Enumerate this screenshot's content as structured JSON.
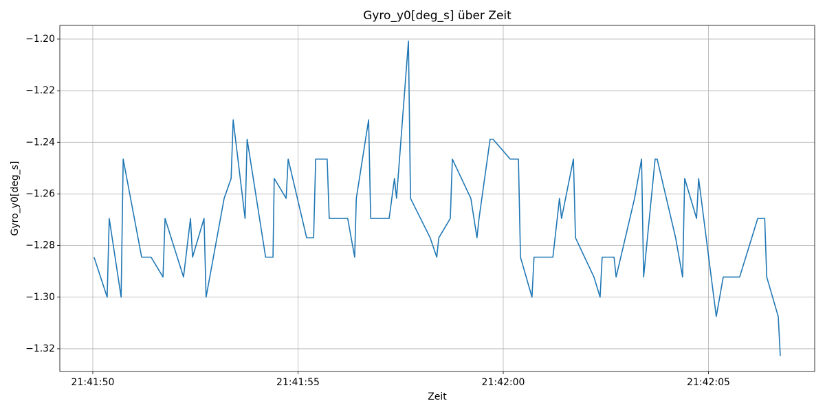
{
  "chart_data": {
    "type": "line",
    "title": "Gyro_y0[deg_s] über Zeit",
    "xlabel": "Zeit",
    "ylabel": "Gyro_y0[deg_s]",
    "grid": true,
    "x": [
      78110.03,
      78110.35,
      78110.4,
      78110.69,
      78110.74,
      78111.19,
      78111.42,
      78111.71,
      78111.76,
      78112.21,
      78112.38,
      78112.43,
      78112.71,
      78112.76,
      78113.2,
      78113.37,
      78113.42,
      78113.71,
      78113.76,
      78114.21,
      78114.39,
      78114.42,
      78114.71,
      78114.76,
      78115.21,
      78115.38,
      78115.43,
      78115.71,
      78115.76,
      78116.21,
      78116.38,
      78116.42,
      78116.72,
      78116.77,
      78117.22,
      78117.35,
      78117.4,
      78117.69,
      78117.74,
      78118.22,
      78118.38,
      78118.43,
      78118.71,
      78118.76,
      78119.21,
      78119.36,
      78119.41,
      78119.68,
      78119.75,
      78120.17,
      78120.37,
      78120.42,
      78120.7,
      78120.75,
      78121.21,
      78121.37,
      78121.42,
      78121.71,
      78121.76,
      78122.21,
      78122.36,
      78122.41,
      78122.7,
      78122.75,
      78123.2,
      78123.37,
      78123.42,
      78123.7,
      78123.75,
      78124.2,
      78124.37,
      78124.42,
      78124.71,
      78124.76,
      78125.19,
      78125.36,
      78125.76,
      78126.2,
      78126.37,
      78126.42,
      78126.7,
      78126.75
    ],
    "series": [
      {
        "name": "Gyro_y0[deg_s]",
        "color": "#1f77b4",
        "values": [
          -1.2845,
          -1.3,
          -1.2695,
          -1.3,
          -1.2465,
          -1.2845,
          -1.2845,
          -1.2922,
          -1.2695,
          -1.2922,
          -1.2695,
          -1.2845,
          -1.2695,
          -1.3,
          -1.2617,
          -1.254,
          -1.2313,
          -1.2695,
          -1.2388,
          -1.2845,
          -1.2845,
          -1.254,
          -1.2617,
          -1.2465,
          -1.277,
          -1.277,
          -1.2465,
          -1.2465,
          -1.2695,
          -1.2695,
          -1.2845,
          -1.2617,
          -1.2313,
          -1.2695,
          -1.2695,
          -1.254,
          -1.2617,
          -1.2008,
          -1.2617,
          -1.277,
          -1.2845,
          -1.277,
          -1.2695,
          -1.2465,
          -1.2617,
          -1.277,
          -1.2695,
          -1.2388,
          -1.2388,
          -1.2465,
          -1.2465,
          -1.2845,
          -1.3,
          -1.2845,
          -1.2845,
          -1.2617,
          -1.2695,
          -1.2465,
          -1.277,
          -1.2922,
          -1.3,
          -1.2845,
          -1.2845,
          -1.2922,
          -1.2617,
          -1.2465,
          -1.2922,
          -1.2465,
          -1.2465,
          -1.277,
          -1.2922,
          -1.254,
          -1.2695,
          -1.254,
          -1.3075,
          -1.2922,
          -1.2922,
          -1.2695,
          -1.2695,
          -1.2922,
          -1.3075,
          -1.3228
        ]
      }
    ],
    "xlim": [
      78109.196,
      78127.588
    ],
    "xticks": [
      {
        "value": 78110,
        "label": "21:41:50"
      },
      {
        "value": 78115,
        "label": "21:41:55"
      },
      {
        "value": 78120,
        "label": "21:42:00"
      },
      {
        "value": 78125,
        "label": "21:42:05"
      }
    ],
    "ylim": [
      -1.3288,
      -1.1947
    ],
    "yticks": [
      {
        "value": -1.32,
        "label": "−1.32"
      },
      {
        "value": -1.3,
        "label": "−1.30"
      },
      {
        "value": -1.28,
        "label": "−1.28"
      },
      {
        "value": -1.26,
        "label": "−1.26"
      },
      {
        "value": -1.24,
        "label": "−1.24"
      },
      {
        "value": -1.22,
        "label": "−1.22"
      },
      {
        "value": -1.2,
        "label": "−1.20"
      }
    ]
  }
}
